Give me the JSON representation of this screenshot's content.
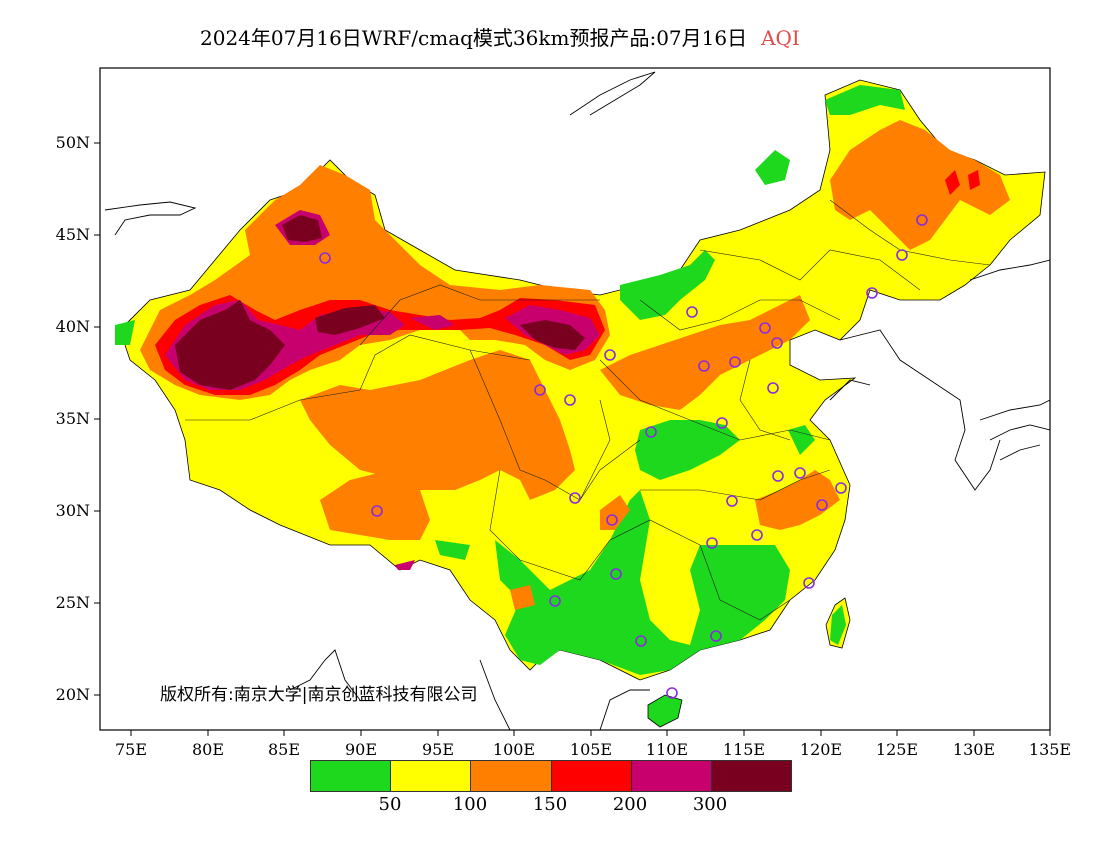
{
  "title": {
    "main": "2024年07月16日WRF/cmaq模式36km预报产品:07月16日",
    "variable": "AQI"
  },
  "axes": {
    "lat_ticks": [
      "50N",
      "45N",
      "40N",
      "35N",
      "30N",
      "25N",
      "20N"
    ],
    "lon_ticks": [
      "75E",
      "80E",
      "85E",
      "90E",
      "95E",
      "100E",
      "105E",
      "110E",
      "115E",
      "120E",
      "125E",
      "130E",
      "135E"
    ],
    "lon_range": [
      73,
      135
    ],
    "lat_range": [
      18,
      54
    ]
  },
  "copyright": "版权所有:南京大学|南京创蓝科技有限公司",
  "legend": {
    "colors": [
      "#1ed81e",
      "#ffff00",
      "#ff7f00",
      "#ff0000",
      "#c8006e",
      "#7a0020"
    ],
    "labels": [
      "50",
      "100",
      "150",
      "200",
      "300"
    ]
  },
  "colors": {
    "green": "#1ed81e",
    "yellow": "#ffff00",
    "orange": "#ff7f00",
    "red": "#ff0000",
    "magenta": "#c8006e",
    "maroon": "#7a0020",
    "station": "#8a2be2"
  }
}
